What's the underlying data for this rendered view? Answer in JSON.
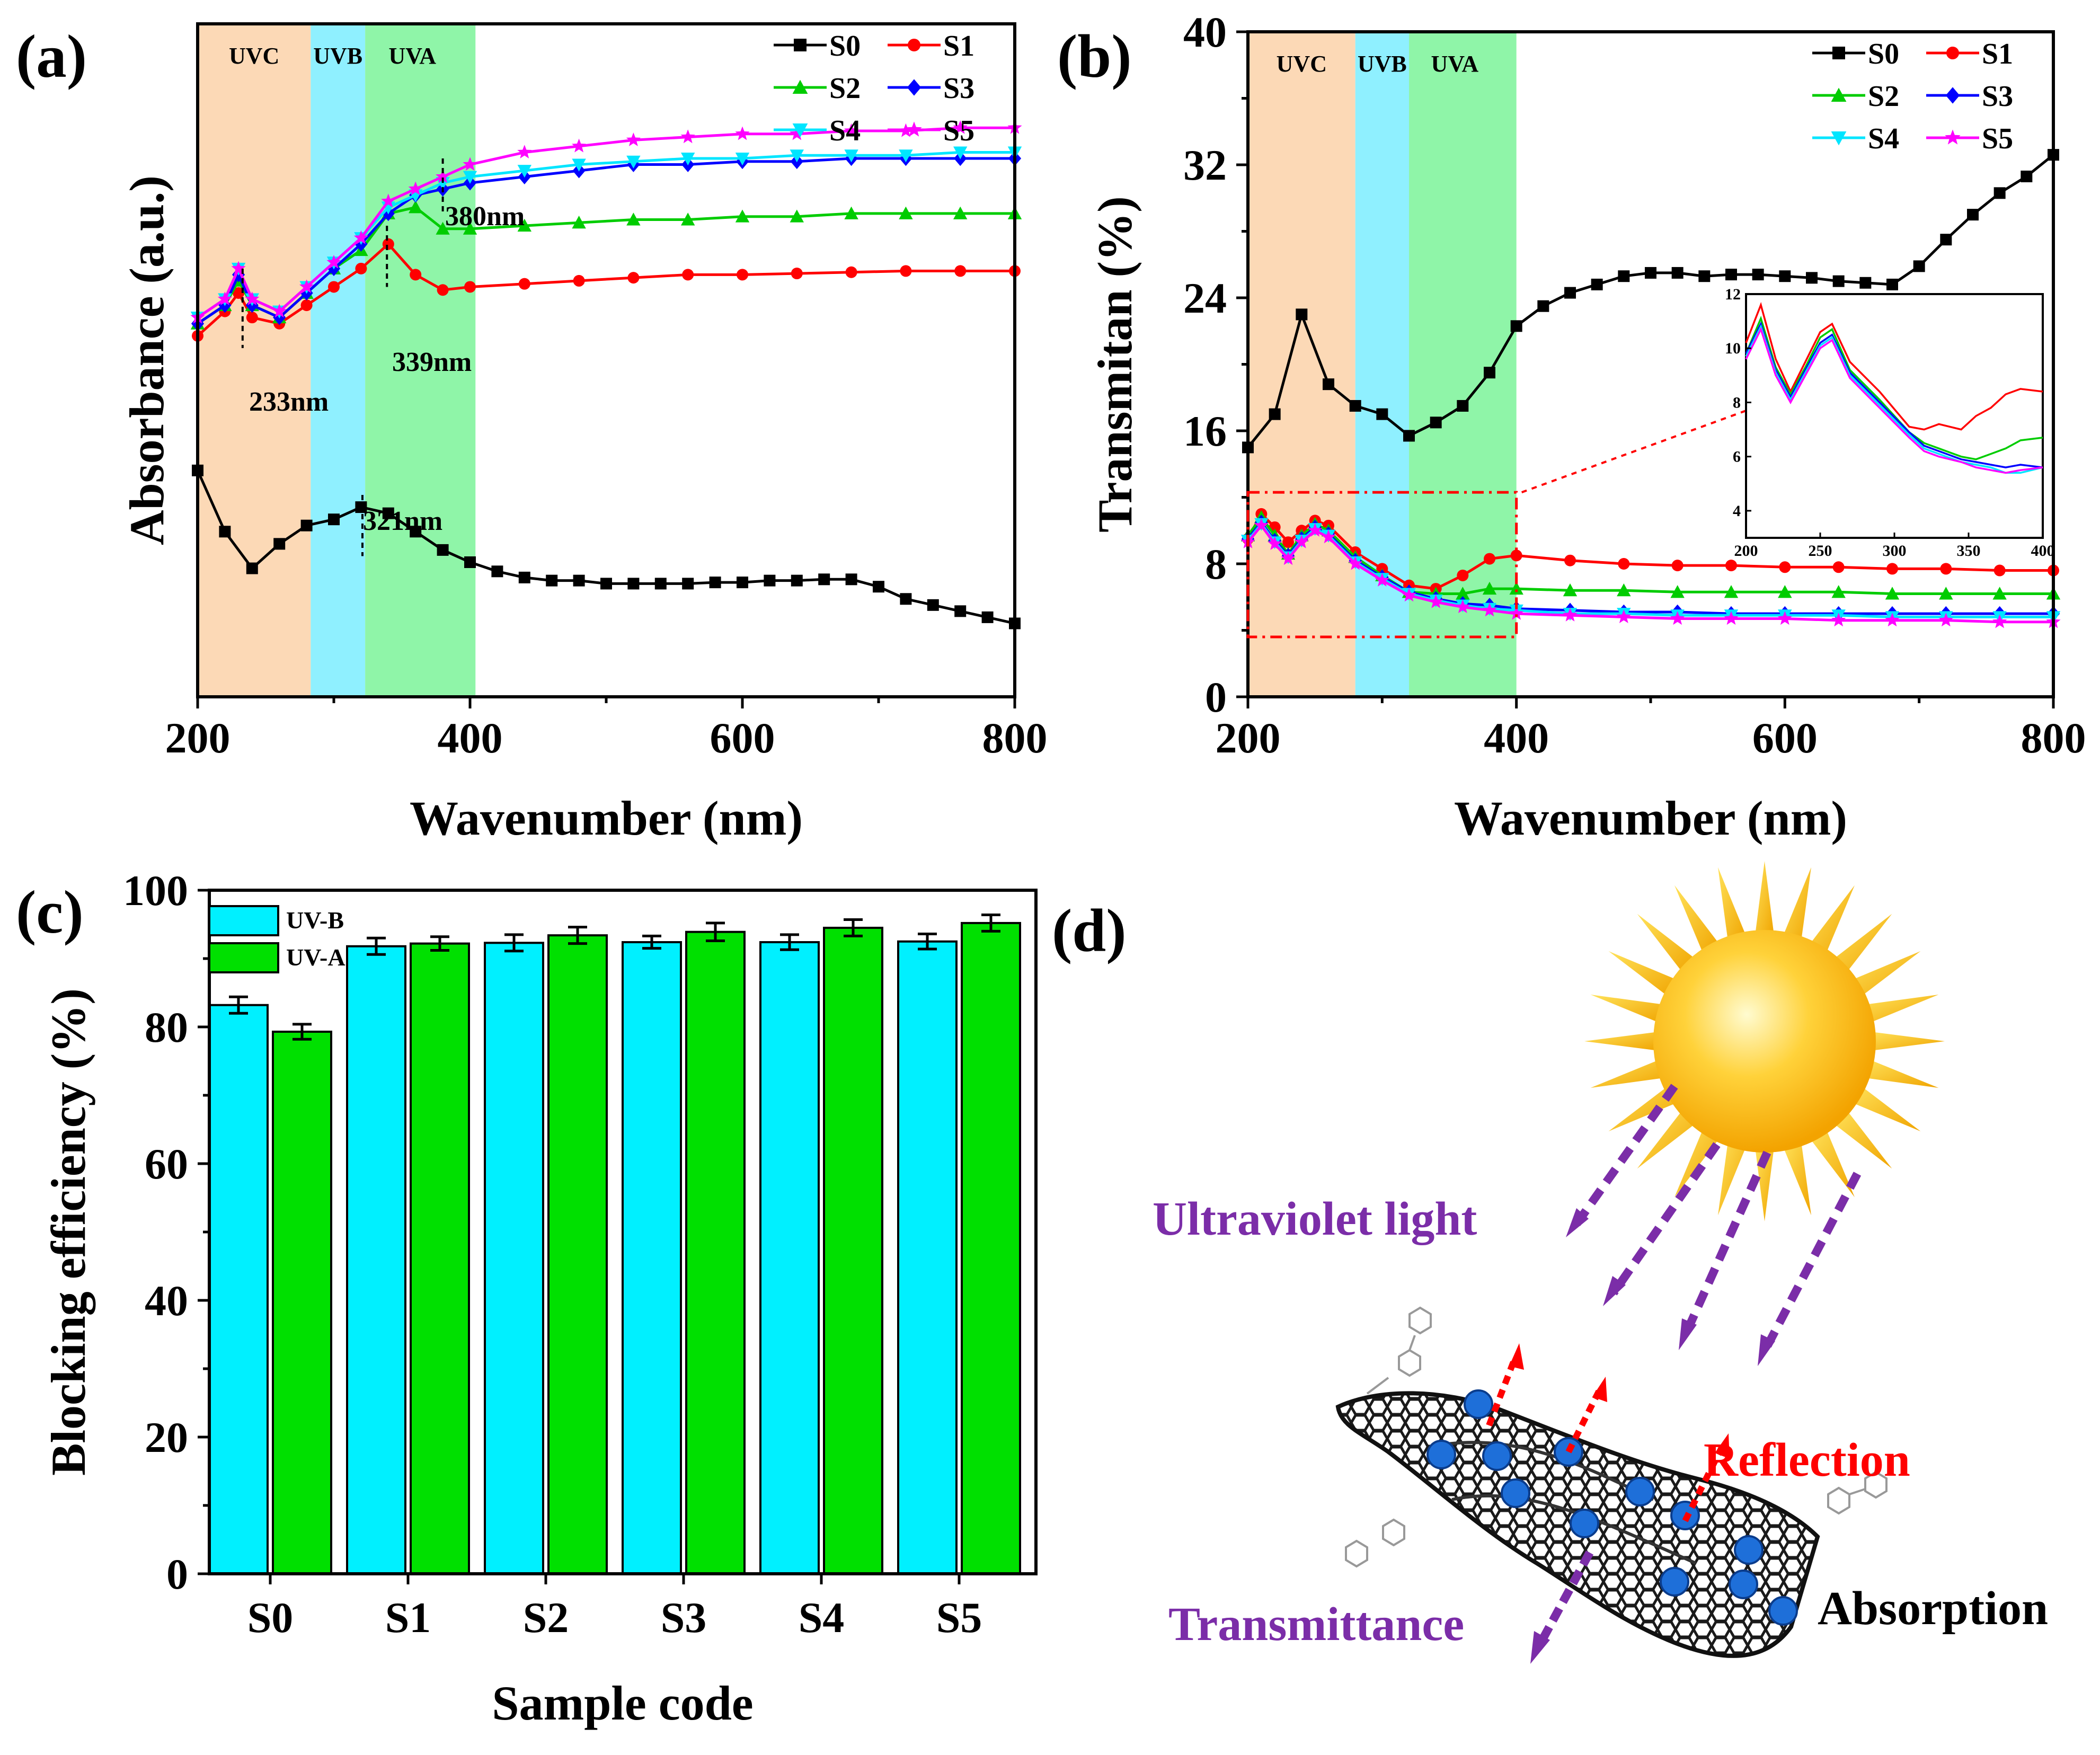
{
  "colors": {
    "S0": "#000000",
    "S1": "#ff0000",
    "S2": "#00cc00",
    "S3": "#0000ff",
    "S4": "#00e5ff",
    "S5": "#ff00ff",
    "UVC": "#fcd9b6",
    "UVB": "#8ff0ff",
    "UVA": "#8ff5a8",
    "barB": "#00f0ff",
    "barA": "#00e000",
    "purple": "#7b2da8",
    "red": "#ff0000"
  },
  "panels": {
    "a": {
      "label": "(a)"
    },
    "b": {
      "label": "(b)"
    },
    "c": {
      "label": "(c)"
    },
    "d": {
      "label": "(d)"
    }
  },
  "chart_data": [
    {
      "panel": "a",
      "type": "line",
      "xlabel": "Wavenumber (nm)",
      "ylabel": "Absorbance (a.u.)",
      "xlim": [
        200,
        800
      ],
      "xticks": [
        "200",
        "400",
        "600",
        "800"
      ],
      "bands": [
        {
          "name": "UVC",
          "from": 200,
          "to": 283
        },
        {
          "name": "UVB",
          "from": 283,
          "to": 323
        },
        {
          "name": "UVA",
          "from": 323,
          "to": 404
        }
      ],
      "annotations": [
        {
          "text": "233nm",
          "x": 233
        },
        {
          "text": "339nm",
          "x": 339
        },
        {
          "text": "321nm",
          "x": 321
        },
        {
          "text": "380nm",
          "x": 380
        }
      ],
      "legend": "top-right",
      "series": [
        {
          "name": "S0",
          "x": [
            200,
            220,
            240,
            260,
            280,
            300,
            320,
            340,
            360,
            380,
            400,
            420,
            440,
            460,
            480,
            500,
            520,
            540,
            560,
            580,
            600,
            620,
            640,
            660,
            680,
            700,
            720,
            740,
            760,
            780,
            800
          ],
          "y": [
            0.62,
            0.52,
            0.46,
            0.5,
            0.53,
            0.54,
            0.56,
            0.55,
            0.52,
            0.49,
            0.47,
            0.455,
            0.445,
            0.44,
            0.44,
            0.435,
            0.435,
            0.435,
            0.435,
            0.437,
            0.437,
            0.44,
            0.44,
            0.442,
            0.442,
            0.43,
            0.41,
            0.4,
            0.39,
            0.38,
            0.37
          ]
        },
        {
          "name": "S1",
          "x": [
            200,
            220,
            230,
            240,
            260,
            280,
            300,
            320,
            340,
            360,
            380,
            400,
            440,
            480,
            520,
            560,
            600,
            640,
            680,
            720,
            760,
            800
          ],
          "y": [
            0.84,
            0.88,
            0.91,
            0.87,
            0.86,
            0.89,
            0.92,
            0.95,
            0.99,
            0.94,
            0.915,
            0.92,
            0.925,
            0.93,
            0.935,
            0.94,
            0.94,
            0.942,
            0.944,
            0.946,
            0.946,
            0.946
          ]
        },
        {
          "name": "S2",
          "x": [
            200,
            220,
            230,
            240,
            260,
            280,
            300,
            320,
            340,
            360,
            380,
            400,
            440,
            480,
            520,
            560,
            600,
            640,
            680,
            720,
            760,
            800
          ],
          "y": [
            0.86,
            0.89,
            0.93,
            0.89,
            0.87,
            0.91,
            0.95,
            0.98,
            1.04,
            1.05,
            1.015,
            1.015,
            1.02,
            1.025,
            1.03,
            1.03,
            1.035,
            1.035,
            1.04,
            1.04,
            1.04,
            1.04
          ]
        },
        {
          "name": "S3",
          "x": [
            200,
            220,
            230,
            240,
            260,
            280,
            300,
            320,
            340,
            360,
            380,
            400,
            440,
            480,
            520,
            560,
            600,
            640,
            680,
            720,
            760,
            800
          ],
          "y": [
            0.86,
            0.89,
            0.94,
            0.89,
            0.87,
            0.91,
            0.95,
            0.99,
            1.04,
            1.07,
            1.08,
            1.09,
            1.1,
            1.11,
            1.12,
            1.12,
            1.125,
            1.125,
            1.13,
            1.13,
            1.13,
            1.13
          ]
        },
        {
          "name": "S4",
          "x": [
            200,
            220,
            230,
            240,
            260,
            280,
            300,
            320,
            340,
            360,
            380,
            400,
            440,
            480,
            520,
            560,
            600,
            640,
            680,
            720,
            760,
            800
          ],
          "y": [
            0.87,
            0.9,
            0.95,
            0.9,
            0.88,
            0.92,
            0.96,
            1.0,
            1.05,
            1.07,
            1.09,
            1.1,
            1.11,
            1.12,
            1.125,
            1.13,
            1.13,
            1.135,
            1.135,
            1.135,
            1.14,
            1.14
          ]
        },
        {
          "name": "S5",
          "x": [
            200,
            220,
            230,
            240,
            260,
            280,
            300,
            320,
            340,
            360,
            380,
            400,
            440,
            480,
            520,
            560,
            600,
            640,
            680,
            720,
            760,
            800
          ],
          "y": [
            0.87,
            0.9,
            0.95,
            0.9,
            0.88,
            0.92,
            0.96,
            1.0,
            1.06,
            1.08,
            1.1,
            1.12,
            1.14,
            1.15,
            1.16,
            1.165,
            1.17,
            1.17,
            1.175,
            1.175,
            1.18,
            1.18
          ]
        }
      ]
    },
    {
      "panel": "b",
      "type": "line",
      "xlabel": "Wavenumber (nm)",
      "ylabel": "Transmitan (%)",
      "xlim": [
        200,
        800
      ],
      "ylim": [
        0,
        40
      ],
      "xticks": [
        "200",
        "400",
        "600",
        "800"
      ],
      "yticks": [
        "0",
        "8",
        "16",
        "24",
        "32",
        "40"
      ],
      "bands": [
        {
          "name": "UVC",
          "from": 200,
          "to": 280
        },
        {
          "name": "UVB",
          "from": 280,
          "to": 320
        },
        {
          "name": "UVA",
          "from": 320,
          "to": 400
        }
      ],
      "legend": "top-right",
      "series": [
        {
          "name": "S0",
          "x": [
            200,
            220,
            240,
            260,
            280,
            300,
            320,
            340,
            360,
            380,
            400,
            420,
            440,
            460,
            480,
            500,
            520,
            540,
            560,
            580,
            600,
            620,
            640,
            660,
            680,
            700,
            720,
            740,
            760,
            780,
            800
          ],
          "y": [
            15,
            17,
            23,
            18.8,
            17.5,
            17,
            15.7,
            16.5,
            17.5,
            19.5,
            22.3,
            23.5,
            24.3,
            24.8,
            25.3,
            25.5,
            25.5,
            25.3,
            25.4,
            25.4,
            25.3,
            25.2,
            25,
            24.9,
            24.8,
            25.9,
            27.5,
            29,
            30.3,
            31.3,
            32.6
          ]
        },
        {
          "name": "S1",
          "x": [
            200,
            210,
            220,
            230,
            240,
            250,
            260,
            280,
            300,
            320,
            340,
            360,
            380,
            400,
            440,
            480,
            520,
            560,
            600,
            640,
            680,
            720,
            760,
            800
          ],
          "y": [
            9.5,
            11,
            10.2,
            9.3,
            10,
            10.6,
            10.3,
            8.7,
            7.7,
            6.7,
            6.5,
            7.3,
            8.3,
            8.5,
            8.2,
            8.0,
            7.9,
            7.9,
            7.8,
            7.8,
            7.7,
            7.7,
            7.6,
            7.6
          ]
        },
        {
          "name": "S2",
          "x": [
            200,
            210,
            220,
            230,
            240,
            250,
            260,
            280,
            300,
            320,
            340,
            360,
            380,
            400,
            440,
            480,
            520,
            560,
            600,
            640,
            680,
            720,
            760,
            800
          ],
          "y": [
            9.7,
            10.8,
            9.7,
            8.6,
            9.7,
            10.4,
            10,
            8.4,
            7.3,
            6.3,
            6.2,
            6.2,
            6.5,
            6.5,
            6.4,
            6.4,
            6.3,
            6.3,
            6.3,
            6.3,
            6.2,
            6.2,
            6.2,
            6.2
          ]
        },
        {
          "name": "S3",
          "x": [
            200,
            210,
            220,
            230,
            240,
            250,
            260,
            280,
            300,
            320,
            340,
            360,
            380,
            400,
            440,
            480,
            520,
            560,
            600,
            640,
            680,
            720,
            760,
            800
          ],
          "y": [
            9.5,
            10.5,
            9.4,
            8.5,
            9.5,
            10.2,
            9.8,
            8.2,
            7.2,
            6.3,
            5.9,
            5.6,
            5.5,
            5.3,
            5.2,
            5.1,
            5.1,
            5.0,
            5.0,
            5.0,
            5.0,
            5.0,
            5.0,
            5.0
          ]
        },
        {
          "name": "S4",
          "x": [
            200,
            210,
            220,
            230,
            240,
            250,
            260,
            280,
            300,
            320,
            340,
            360,
            380,
            400,
            440,
            480,
            520,
            560,
            600,
            640,
            680,
            720,
            760,
            800
          ],
          "y": [
            9.4,
            10.4,
            9.3,
            8.4,
            9.4,
            10.1,
            9.7,
            8.1,
            7.1,
            6.2,
            5.8,
            5.5,
            5.3,
            5.2,
            5.0,
            5.0,
            4.9,
            4.9,
            4.9,
            4.9,
            4.8,
            4.8,
            4.8,
            4.8
          ]
        },
        {
          "name": "S5",
          "x": [
            200,
            210,
            220,
            230,
            240,
            250,
            260,
            280,
            300,
            320,
            340,
            360,
            380,
            400,
            440,
            480,
            520,
            560,
            600,
            640,
            680,
            720,
            760,
            800
          ],
          "y": [
            9.3,
            10.3,
            9.2,
            8.3,
            9.3,
            10.0,
            9.6,
            8.0,
            7.0,
            6.1,
            5.7,
            5.4,
            5.2,
            5.0,
            4.9,
            4.8,
            4.7,
            4.7,
            4.7,
            4.6,
            4.6,
            4.6,
            4.5,
            4.5
          ]
        }
      ],
      "inset": {
        "type": "line",
        "xlim": [
          200,
          400
        ],
        "ylim": [
          3,
          12
        ],
        "xticks": [
          "200",
          "250",
          "300",
          "350",
          "400"
        ],
        "yticks": [
          "4",
          "6",
          "8",
          "10",
          "12"
        ],
        "series": [
          {
            "name": "S1",
            "x": [
              200,
              210,
              220,
              230,
              240,
              250,
              258,
              270,
              290,
              310,
              320,
              330,
              345,
              355,
              365,
              375,
              385,
              400
            ],
            "y": [
              10.2,
              11.6,
              9.6,
              8.4,
              9.5,
              10.6,
              10.9,
              9.5,
              8.4,
              7.1,
              7.0,
              7.2,
              7.0,
              7.5,
              7.8,
              8.3,
              8.5,
              8.4
            ]
          },
          {
            "name": "S2",
            "x": [
              200,
              210,
              220,
              230,
              240,
              250,
              258,
              270,
              290,
              310,
              320,
              330,
              345,
              355,
              365,
              375,
              385,
              400
            ],
            "y": [
              9.8,
              11.1,
              9.3,
              8.3,
              9.3,
              10.4,
              10.7,
              9.2,
              8.1,
              6.9,
              6.5,
              6.3,
              6.0,
              5.9,
              6.1,
              6.3,
              6.6,
              6.7
            ]
          },
          {
            "name": "S3",
            "x": [
              200,
              210,
              220,
              230,
              240,
              250,
              258,
              270,
              290,
              310,
              320,
              330,
              345,
              355,
              365,
              375,
              385,
              400
            ],
            "y": [
              9.8,
              10.9,
              9.2,
              8.2,
              9.2,
              10.2,
              10.5,
              9.1,
              8.0,
              6.9,
              6.4,
              6.2,
              5.9,
              5.8,
              5.7,
              5.6,
              5.7,
              5.6
            ]
          },
          {
            "name": "S4",
            "x": [
              200,
              210,
              220,
              230,
              240,
              250,
              258,
              270,
              290,
              310,
              320,
              330,
              345,
              355,
              365,
              375,
              385,
              400
            ],
            "y": [
              9.7,
              10.8,
              9.1,
              8.1,
              9.1,
              10.1,
              10.4,
              9.0,
              7.9,
              6.8,
              6.3,
              6.1,
              5.8,
              5.7,
              5.6,
              5.4,
              5.4,
              5.6
            ]
          },
          {
            "name": "S5",
            "x": [
              200,
              210,
              220,
              230,
              240,
              250,
              258,
              270,
              290,
              310,
              320,
              330,
              345,
              355,
              365,
              375,
              385,
              400
            ],
            "y": [
              9.6,
              10.7,
              9.0,
              8.0,
              9.0,
              10.0,
              10.3,
              8.9,
              7.8,
              6.7,
              6.2,
              6.0,
              5.8,
              5.6,
              5.5,
              5.4,
              5.5,
              5.6
            ]
          }
        ]
      }
    },
    {
      "panel": "c",
      "type": "bar",
      "xlabel": "Sample code",
      "ylabel": "Blocking efficiency (%)",
      "ylim": [
        0,
        100
      ],
      "yticks": [
        "0",
        "20",
        "40",
        "60",
        "80",
        "100"
      ],
      "categories": [
        "S0",
        "S1",
        "S2",
        "S3",
        "S4",
        "S5"
      ],
      "legend": "top-left",
      "series": [
        {
          "name": "UV-B",
          "values": [
            83.2,
            91.8,
            92.3,
            92.4,
            92.4,
            92.5
          ],
          "errors": [
            1.2,
            1.2,
            1.2,
            0.9,
            1.1,
            1.1
          ]
        },
        {
          "name": "UV-A",
          "values": [
            79.3,
            92.2,
            93.4,
            93.9,
            94.5,
            95.2
          ],
          "errors": [
            1.1,
            1.0,
            1.2,
            1.3,
            1.2,
            1.2
          ]
        }
      ]
    }
  ],
  "schematic": {
    "ultraviolet": "Ultraviolet light",
    "reflection": "Reflection",
    "transmittance": "Transmittance",
    "absorption": "Absorption"
  }
}
